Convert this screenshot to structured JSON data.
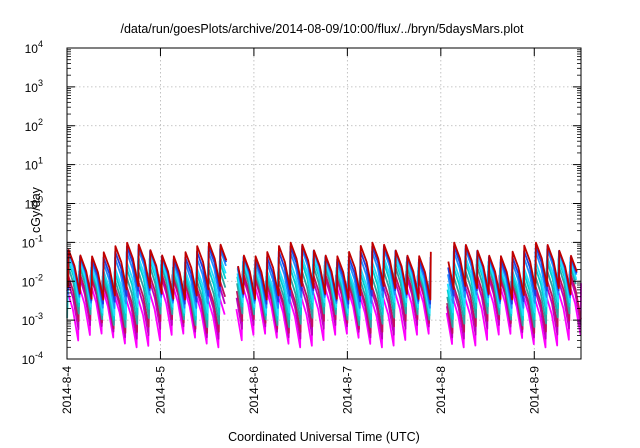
{
  "chart_data": {
    "type": "line",
    "title": "/data/run/goesPlots/archive/2014-08-09/10:00/flux/../bryn/5daysMars.plot",
    "xlabel": "Coordinated Universal Time (UTC)",
    "ylabel": "cGy/day",
    "x_tick_labels": [
      "2014-8-4",
      "2014-8-5",
      "2014-8-6",
      "2014-8-7",
      "2014-8-8",
      "2014-8-9"
    ],
    "x_tick_values": [
      "2014-08-04",
      "2014-08-05",
      "2014-08-06",
      "2014-08-07",
      "2014-08-08",
      "2014-08-09"
    ],
    "xlim": [
      "2014-08-04T00:00",
      "2014-08-09T12:00"
    ],
    "y_scale": "log",
    "ylim": [
      0.0001,
      10000
    ],
    "y_tick_labels": [
      {
        "base": "10",
        "exp": "4"
      },
      {
        "base": "10",
        "exp": "3"
      },
      {
        "base": "10",
        "exp": "2"
      },
      {
        "base": "10",
        "exp": "1"
      },
      {
        "base": "10",
        "exp": "0"
      },
      {
        "base": "10",
        "exp": "-1"
      },
      {
        "base": "10",
        "exp": "-2"
      },
      {
        "base": "10",
        "exp": "-3"
      },
      {
        "base": "10",
        "exp": "-4"
      }
    ],
    "grid": true,
    "data_gaps": [
      [
        "2014-08-05T17:00",
        "2014-08-05T19:00"
      ],
      [
        "2014-08-07T22:00",
        "2014-08-08T01:00"
      ]
    ],
    "sawtooth_period_hours": 3,
    "series": [
      {
        "color": "#ff00ff",
        "peak": 0.006,
        "trough": 0.0003
      },
      {
        "color": "#c000c0",
        "peak": 0.01,
        "trough": 0.0005
      },
      {
        "color": "#c01060",
        "peak": 0.012,
        "trough": 0.0007
      },
      {
        "color": "#30a0a0",
        "peak": 0.018,
        "trough": 0.001
      },
      {
        "color": "#00cfcf",
        "peak": 0.025,
        "trough": 0.0015
      },
      {
        "color": "#20e0ff",
        "peak": 0.03,
        "trough": 0.002
      },
      {
        "color": "#1e90ff",
        "peak": 0.045,
        "trough": 0.003
      },
      {
        "color": "#2040e0",
        "peak": 0.055,
        "trough": 0.004
      },
      {
        "color": "#c00000",
        "peak": 0.065,
        "trough": 0.005
      }
    ]
  }
}
